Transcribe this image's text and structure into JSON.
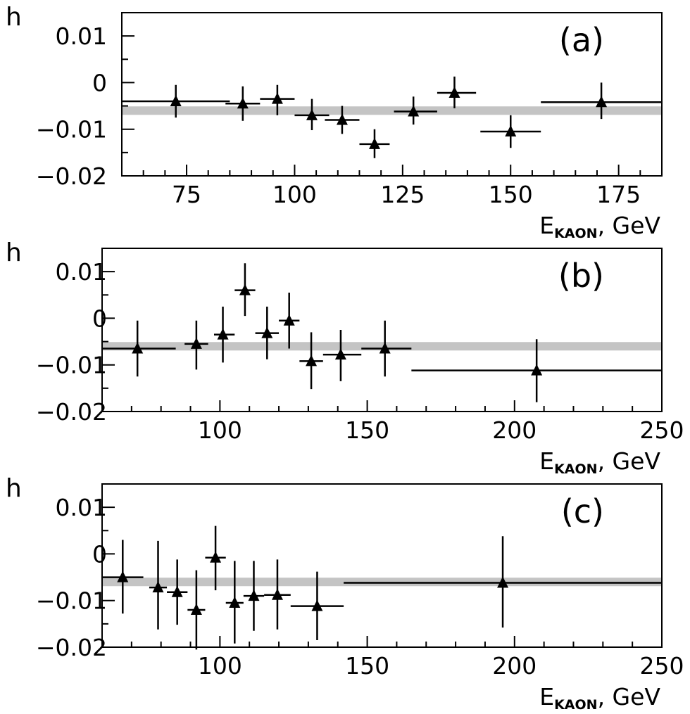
{
  "chart_data": [
    {
      "type": "scatter",
      "panel_label": "(a)",
      "ylabel": "h",
      "xlabel_main": "E",
      "xlabel_sub": "KAON",
      "xlabel_unit": ", GeV",
      "xlim": [
        60,
        185
      ],
      "ylim": [
        -0.02,
        0.015
      ],
      "xticks": [
        75,
        100,
        125,
        150,
        175
      ],
      "xtick_labels": [
        "75",
        "100",
        "125",
        "150",
        "175"
      ],
      "yticks": [
        0.01,
        0,
        -0.01,
        -0.02
      ],
      "ytick_labels": [
        "0.01",
        "0",
        "−0.01",
        "−0.02"
      ],
      "fit_line": {
        "y": -0.006
      },
      "points": [
        {
          "x": 72.5,
          "xlo": 60,
          "xhi": 85,
          "y": -0.004,
          "ylo": -0.0075,
          "yhi": -0.0005
        },
        {
          "x": 88,
          "xlo": 84,
          "xhi": 92,
          "y": -0.0045,
          "ylo": -0.0082,
          "yhi": -0.0008
        },
        {
          "x": 96,
          "xlo": 92,
          "xhi": 100,
          "y": -0.0035,
          "ylo": -0.007,
          "yhi": -0.0005
        },
        {
          "x": 104,
          "xlo": 100,
          "xhi": 108,
          "y": -0.007,
          "ylo": -0.0102,
          "yhi": -0.0035
        },
        {
          "x": 111,
          "xlo": 107,
          "xhi": 115,
          "y": -0.008,
          "ylo": -0.011,
          "yhi": -0.005
        },
        {
          "x": 118.5,
          "xlo": 115,
          "xhi": 122,
          "y": -0.0132,
          "ylo": -0.0162,
          "yhi": -0.01
        },
        {
          "x": 127.5,
          "xlo": 123,
          "xhi": 133,
          "y": -0.0062,
          "ylo": -0.009,
          "yhi": -0.003
        },
        {
          "x": 137,
          "xlo": 133,
          "xhi": 142,
          "y": -0.0022,
          "ylo": -0.0055,
          "yhi": 0.0013
        },
        {
          "x": 150,
          "xlo": 143,
          "xhi": 157,
          "y": -0.0105,
          "ylo": -0.014,
          "yhi": -0.007
        },
        {
          "x": 171,
          "xlo": 157,
          "xhi": 185,
          "y": -0.0042,
          "ylo": -0.0078,
          "yhi": 0.0
        }
      ]
    },
    {
      "type": "scatter",
      "panel_label": "(b)",
      "ylabel": "h",
      "xlabel_main": "E",
      "xlabel_sub": "KAON",
      "xlabel_unit": ", GeV",
      "xlim": [
        60,
        250
      ],
      "ylim": [
        -0.02,
        0.015
      ],
      "xticks": [
        100,
        150,
        200,
        250
      ],
      "xtick_labels": [
        "100",
        "150",
        "200",
        "250"
      ],
      "yticks": [
        0.01,
        0,
        -0.01,
        -0.02
      ],
      "ytick_labels": [
        "0.01",
        "0",
        "−0.01",
        "−0.02"
      ],
      "fit_line": {
        "y": -0.006
      },
      "points": [
        {
          "x": 72,
          "xlo": 60,
          "xhi": 85,
          "y": -0.0065,
          "ylo": -0.0125,
          "yhi": -0.0005
        },
        {
          "x": 92,
          "xlo": 88,
          "xhi": 96,
          "y": -0.0055,
          "ylo": -0.011,
          "yhi": -0.0005
        },
        {
          "x": 101,
          "xlo": 98,
          "xhi": 105,
          "y": -0.0035,
          "ylo": -0.0095,
          "yhi": 0.0025
        },
        {
          "x": 108.5,
          "xlo": 105,
          "xhi": 112,
          "y": 0.006,
          "ylo": 0.0005,
          "yhi": 0.0118
        },
        {
          "x": 116,
          "xlo": 112,
          "xhi": 120,
          "y": -0.0032,
          "ylo": -0.0088,
          "yhi": 0.0025
        },
        {
          "x": 123.5,
          "xlo": 120,
          "xhi": 127,
          "y": -0.0005,
          "ylo": -0.0065,
          "yhi": 0.0055
        },
        {
          "x": 131,
          "xlo": 127,
          "xhi": 135,
          "y": -0.0092,
          "ylo": -0.0152,
          "yhi": -0.003
        },
        {
          "x": 141,
          "xlo": 135,
          "xhi": 148,
          "y": -0.0078,
          "ylo": -0.0135,
          "yhi": -0.0025
        },
        {
          "x": 156,
          "xlo": 148,
          "xhi": 165,
          "y": -0.0065,
          "ylo": -0.0125,
          "yhi": -0.0005
        },
        {
          "x": 207.5,
          "xlo": 165,
          "xhi": 250,
          "y": -0.0112,
          "ylo": -0.018,
          "yhi": -0.0045
        }
      ]
    },
    {
      "type": "scatter",
      "panel_label": "(c)",
      "ylabel": "h",
      "xlabel_main": "E",
      "xlabel_sub": "KAON",
      "xlabel_unit": ", GeV",
      "xlim": [
        60,
        250
      ],
      "ylim": [
        -0.02,
        0.015
      ],
      "xticks": [
        100,
        150,
        200,
        250
      ],
      "xtick_labels": [
        "100",
        "150",
        "200",
        "250"
      ],
      "yticks": [
        0.01,
        0,
        -0.01,
        -0.02
      ],
      "ytick_labels": [
        "0.01",
        "0",
        "−0.01",
        "−0.02"
      ],
      "fit_line": {
        "y": -0.006
      },
      "points": [
        {
          "x": 67,
          "xlo": 60,
          "xhi": 74,
          "y": -0.005,
          "ylo": -0.0128,
          "yhi": 0.003
        },
        {
          "x": 79,
          "xlo": 76,
          "xhi": 82,
          "y": -0.0072,
          "ylo": -0.0162,
          "yhi": 0.0028
        },
        {
          "x": 85.5,
          "xlo": 82,
          "xhi": 89,
          "y": -0.0082,
          "ylo": -0.0152,
          "yhi": -0.0012
        },
        {
          "x": 92,
          "xlo": 89,
          "xhi": 95,
          "y": -0.012,
          "ylo": -0.0205,
          "yhi": -0.0035
        },
        {
          "x": 98.5,
          "xlo": 95,
          "xhi": 102,
          "y": -0.0008,
          "ylo": -0.0078,
          "yhi": 0.006
        },
        {
          "x": 105,
          "xlo": 102,
          "xhi": 108,
          "y": -0.0105,
          "ylo": -0.0192,
          "yhi": -0.0015
        },
        {
          "x": 111.5,
          "xlo": 108,
          "xhi": 115,
          "y": -0.009,
          "ylo": -0.0165,
          "yhi": -0.0015
        },
        {
          "x": 119.5,
          "xlo": 115,
          "xhi": 124,
          "y": -0.0088,
          "ylo": -0.0162,
          "yhi": -0.0012
        },
        {
          "x": 133,
          "xlo": 124,
          "xhi": 142,
          "y": -0.0112,
          "ylo": -0.0185,
          "yhi": -0.0038
        },
        {
          "x": 196,
          "xlo": 142,
          "xhi": 250,
          "y": -0.0062,
          "ylo": -0.0158,
          "yhi": 0.0038
        }
      ]
    }
  ]
}
